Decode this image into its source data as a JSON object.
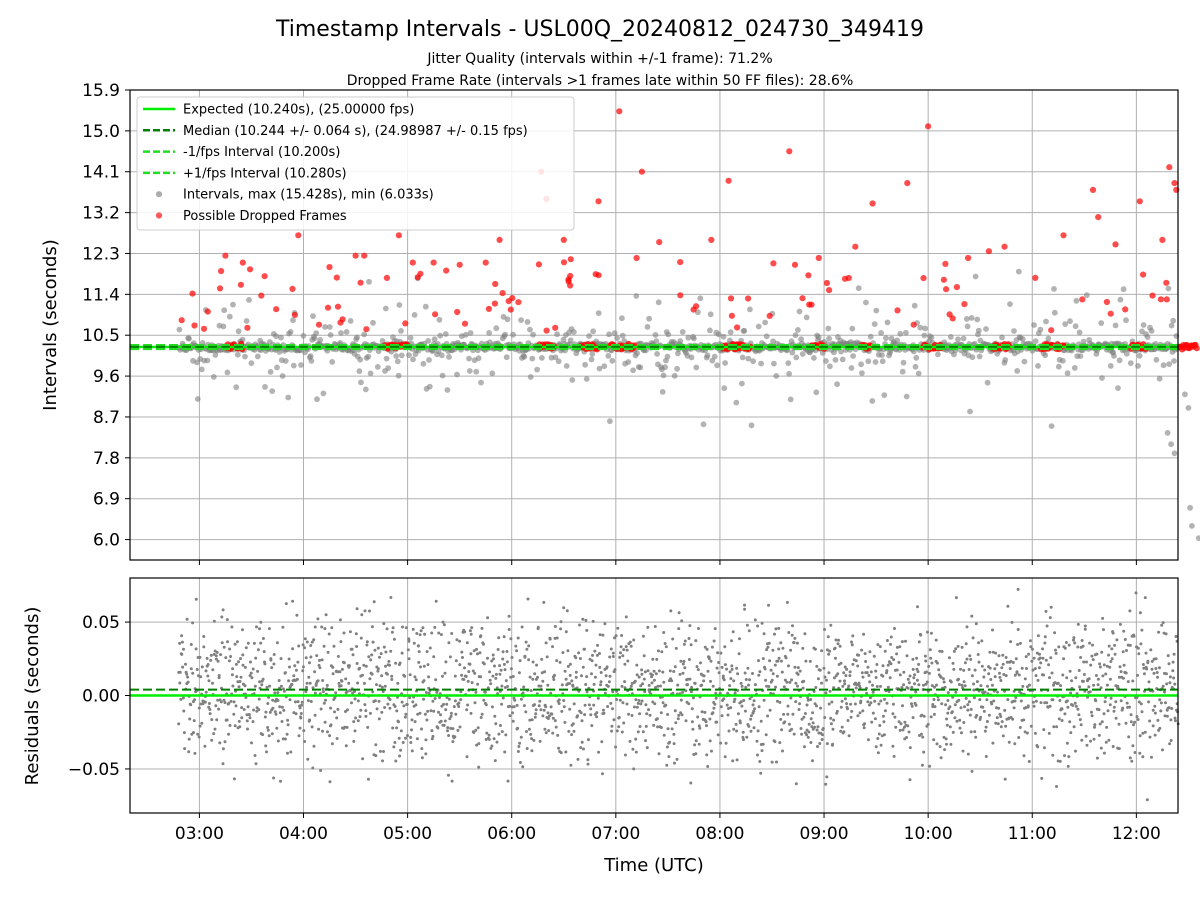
{
  "figure": {
    "title": "Timestamp Intervals - USL00Q_20240812_024730_349419",
    "subtitle_1": "Jitter Quality (intervals within +/-1 frame): 71.2%",
    "subtitle_2": "Dropped Frame Rate (intervals >1 frames late within 50 FF files): 28.6%"
  },
  "colors": {
    "expected": "#00ee00",
    "median": "#008000",
    "band": "#22dd22",
    "intervals": "#808080",
    "dropped": "#ff0000",
    "grid": "#b0b0b0"
  },
  "chart_data": [
    {
      "type": "scatter",
      "name": "intervals",
      "ylabel": "Intervals (seconds)",
      "y_ticks": [
        "6.0",
        "6.9",
        "7.8",
        "8.7",
        "9.6",
        "10.5",
        "11.4",
        "12.3",
        "13.2",
        "14.1",
        "15.0",
        "15.9"
      ],
      "ylim": [
        5.55,
        15.9
      ],
      "xlim": [
        "02:20",
        "12:24"
      ],
      "grid": true,
      "legend_position": "upper-left",
      "legend": [
        {
          "label": "Expected (10.240s), (25.00000 fps)",
          "style": "solid-line",
          "color": "#00ee00"
        },
        {
          "label": "Median (10.244 +/- 0.064 s), (24.98987 +/- 0.15 fps)",
          "style": "dashed-line",
          "color": "#008000"
        },
        {
          "label": "-1/fps Interval (10.200s)",
          "style": "dashed-line",
          "color": "#22dd22"
        },
        {
          "label": "+1/fps Interval (10.280s)",
          "style": "dashed-line",
          "color": "#22dd22"
        },
        {
          "label": "Intervals, max (15.428s), min (6.033s)",
          "style": "marker",
          "color": "#808080"
        },
        {
          "label": "Possible Dropped Frames",
          "style": "marker",
          "color": "#ff0000"
        }
      ],
      "reference_lines": {
        "expected": 10.24,
        "median": 10.244,
        "minus_1fps": 10.2,
        "plus_1fps": 10.28
      },
      "series": [
        {
          "name": "Intervals, max (15.428s), min (6.033s)",
          "x_range": [
            "02:48",
            "12:24"
          ],
          "max": 15.428,
          "min": 6.033,
          "typical_range": [
            8.3,
            11.9
          ]
        },
        {
          "name": "Possible Dropped Frames",
          "points": [
            {
              "x": "03:15",
              "y": 12.25
            },
            {
              "x": "03:25",
              "y": 12.1
            },
            {
              "x": "03:57",
              "y": 12.7
            },
            {
              "x": "04:15",
              "y": 12.0
            },
            {
              "x": "04:30",
              "y": 12.25
            },
            {
              "x": "04:35",
              "y": 12.25
            },
            {
              "x": "04:55",
              "y": 12.7
            },
            {
              "x": "05:03",
              "y": 12.1
            },
            {
              "x": "05:15",
              "y": 12.1
            },
            {
              "x": "05:30",
              "y": 12.05
            },
            {
              "x": "05:45",
              "y": 12.1
            },
            {
              "x": "05:53",
              "y": 12.6
            },
            {
              "x": "06:17",
              "y": 14.1
            },
            {
              "x": "06:20",
              "y": 13.5
            },
            {
              "x": "06:30",
              "y": 12.6
            },
            {
              "x": "06:50",
              "y": 13.45
            },
            {
              "x": "07:02",
              "y": 15.43
            },
            {
              "x": "07:12",
              "y": 12.2
            },
            {
              "x": "07:15",
              "y": 14.1
            },
            {
              "x": "07:25",
              "y": 12.55
            },
            {
              "x": "07:55",
              "y": 12.6
            },
            {
              "x": "08:05",
              "y": 13.9
            },
            {
              "x": "08:40",
              "y": 14.55
            },
            {
              "x": "08:57",
              "y": 12.2
            },
            {
              "x": "09:18",
              "y": 12.45
            },
            {
              "x": "09:28",
              "y": 13.4
            },
            {
              "x": "09:48",
              "y": 13.85
            },
            {
              "x": "10:00",
              "y": 15.1
            },
            {
              "x": "10:23",
              "y": 12.2
            },
            {
              "x": "10:35",
              "y": 12.35
            },
            {
              "x": "10:44",
              "y": 12.45
            },
            {
              "x": "11:18",
              "y": 12.7
            },
            {
              "x": "11:35",
              "y": 13.7
            },
            {
              "x": "11:38",
              "y": 13.1
            },
            {
              "x": "11:48",
              "y": 12.5
            },
            {
              "x": "12:02",
              "y": 13.45
            },
            {
              "x": "12:19",
              "y": 14.2
            },
            {
              "x": "12:22",
              "y": 13.85
            },
            {
              "x": "12:23",
              "y": 13.7
            },
            {
              "x": "12:15",
              "y": 12.6
            }
          ]
        }
      ]
    },
    {
      "type": "scatter",
      "name": "residuals",
      "ylabel": "Residuals (seconds)",
      "xlabel": "Time (UTC)",
      "x_ticks": [
        "03:00",
        "04:00",
        "05:00",
        "06:00",
        "07:00",
        "08:00",
        "09:00",
        "10:00",
        "11:00",
        "12:00"
      ],
      "y_ticks": [
        "0.05",
        "0.00",
        "−0.05"
      ],
      "y_tick_values": [
        0.05,
        0.0,
        -0.05
      ],
      "ylim": [
        -0.08,
        0.08
      ],
      "xlim": [
        "02:20",
        "12:24"
      ],
      "grid": true,
      "reference_lines": {
        "expected": 0.0,
        "median": 0.004
      },
      "series": [
        {
          "name": "residuals",
          "x_range": [
            "02:48",
            "12:24"
          ],
          "typical_range": [
            -0.04,
            0.05
          ],
          "color": "#808080"
        }
      ]
    }
  ]
}
